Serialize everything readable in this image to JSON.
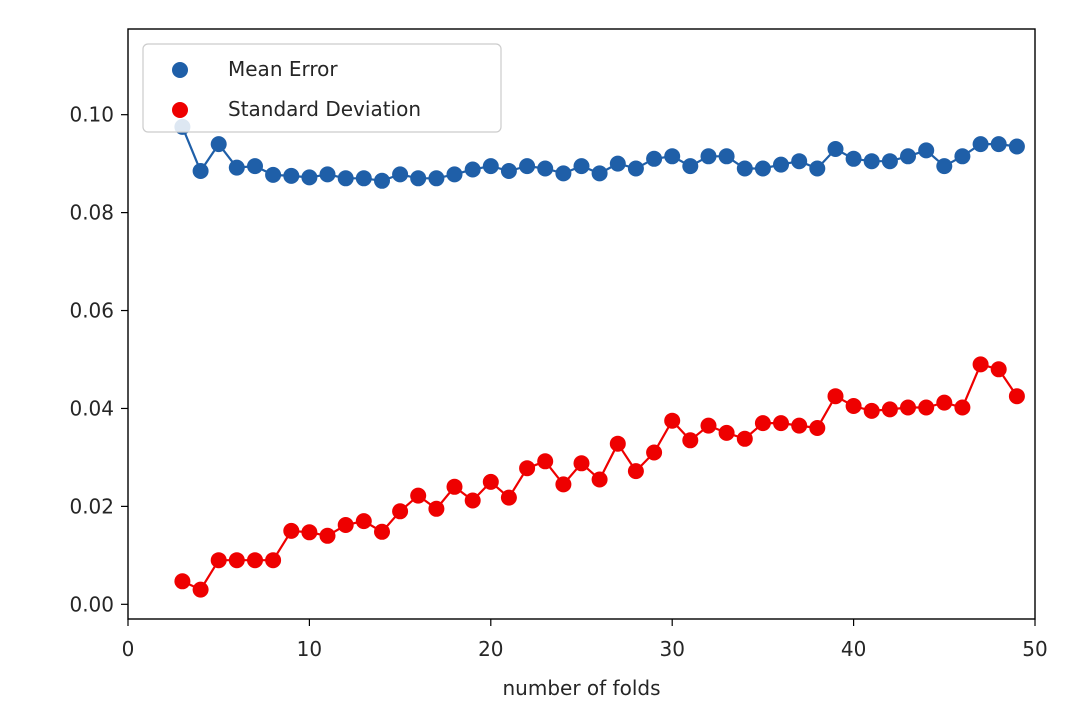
{
  "chart_data": {
    "type": "line",
    "title": "",
    "xlabel": "number of folds",
    "ylabel": "",
    "xlim": [
      0,
      50
    ],
    "ylim": [
      -0.003,
      0.1175
    ],
    "grid": false,
    "legend_placement": "upper-left",
    "x_ticks": [
      0,
      10,
      20,
      30,
      40,
      50
    ],
    "y_ticks": [
      0.0,
      0.02,
      0.04,
      0.06,
      0.08,
      0.1
    ],
    "x_tick_labels": [
      "0",
      "10",
      "20",
      "30",
      "40",
      "50"
    ],
    "y_tick_labels": [
      "0.00",
      "0.02",
      "0.04",
      "0.06",
      "0.08",
      "0.10"
    ],
    "x": [
      3,
      4,
      5,
      6,
      7,
      8,
      9,
      10,
      11,
      12,
      13,
      14,
      15,
      16,
      17,
      18,
      19,
      20,
      21,
      22,
      23,
      24,
      25,
      26,
      27,
      28,
      29,
      30,
      31,
      32,
      33,
      34,
      35,
      36,
      37,
      38,
      39,
      40,
      41,
      42,
      43,
      44,
      45,
      46,
      47,
      48,
      49
    ],
    "series": [
      {
        "name": "Mean Error",
        "color": "#1f5fa8",
        "values": [
          0.0975,
          0.0885,
          0.094,
          0.0892,
          0.0895,
          0.0877,
          0.0875,
          0.0872,
          0.0878,
          0.087,
          0.087,
          0.0865,
          0.0878,
          0.087,
          0.087,
          0.0878,
          0.0888,
          0.0895,
          0.0885,
          0.0895,
          0.089,
          0.088,
          0.0895,
          0.088,
          0.09,
          0.089,
          0.091,
          0.0915,
          0.0895,
          0.0915,
          0.0915,
          0.089,
          0.089,
          0.0898,
          0.0905,
          0.089,
          0.093,
          0.091,
          0.0905,
          0.0905,
          0.0915,
          0.0927,
          0.0895,
          0.0915,
          0.094,
          0.094,
          0.0935
        ]
      },
      {
        "name": "Standard Deviation",
        "color": "#ee0000",
        "values": [
          0.0047,
          0.003,
          0.009,
          0.009,
          0.009,
          0.009,
          0.015,
          0.0147,
          0.014,
          0.0162,
          0.017,
          0.0148,
          0.019,
          0.0222,
          0.0195,
          0.024,
          0.0212,
          0.025,
          0.0218,
          0.0278,
          0.0292,
          0.0245,
          0.0288,
          0.0255,
          0.0328,
          0.0272,
          0.031,
          0.0375,
          0.0335,
          0.0365,
          0.035,
          0.0338,
          0.037,
          0.037,
          0.0365,
          0.036,
          0.0425,
          0.0405,
          0.0395,
          0.0398,
          0.0402,
          0.0402,
          0.0412,
          0.0402,
          0.049,
          0.048,
          0.0425
        ]
      }
    ]
  }
}
